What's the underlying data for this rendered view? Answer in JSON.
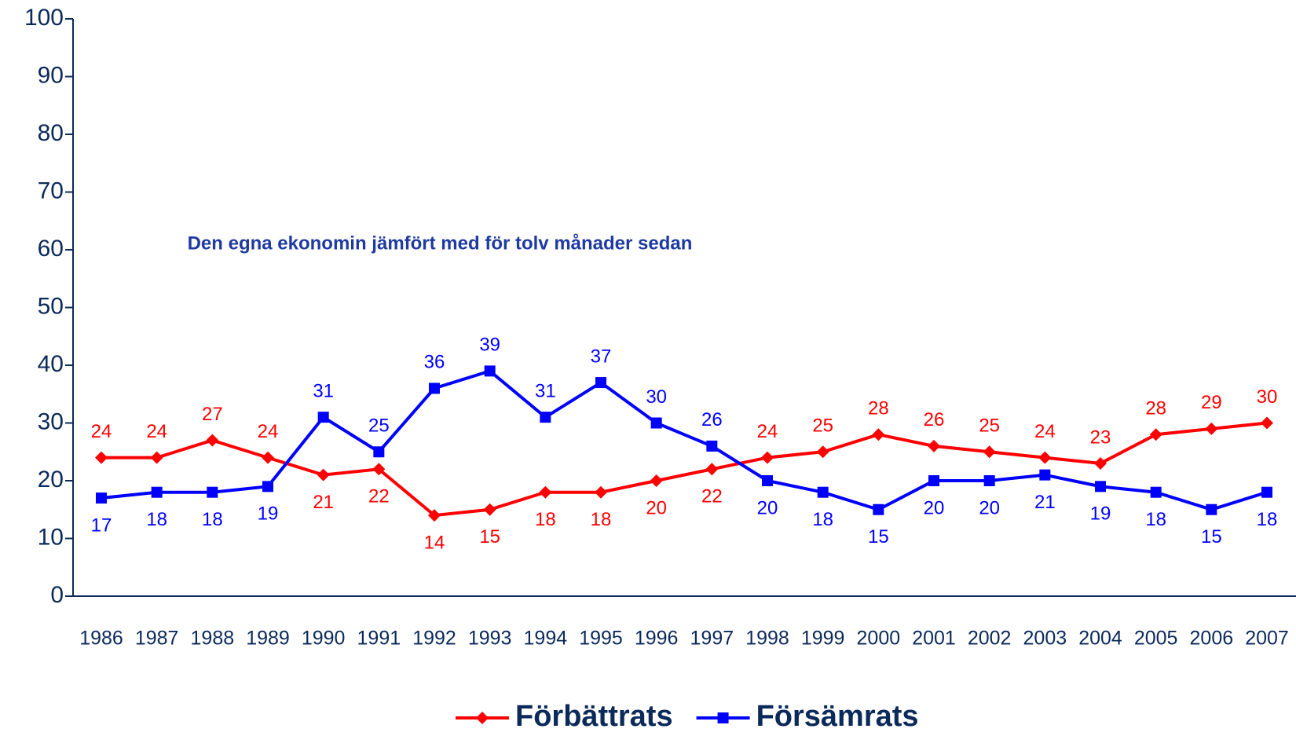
{
  "chart_data": {
    "type": "line",
    "title": "Den egna ekonomin jämfört med för tolv månader sedan",
    "categories": [
      "1986",
      "1987",
      "1988",
      "1989",
      "1990",
      "1991",
      "1992",
      "1993",
      "1994",
      "1995",
      "1996",
      "1997",
      "1998",
      "1999",
      "2000",
      "2001",
      "2002",
      "2003",
      "2004",
      "2005",
      "2006",
      "2007"
    ],
    "series": [
      {
        "name": "Förbättrats",
        "color": "#ff0000",
        "marker": "diamond",
        "values": [
          24,
          24,
          27,
          24,
          21,
          22,
          14,
          15,
          18,
          18,
          20,
          22,
          24,
          25,
          28,
          26,
          25,
          24,
          23,
          28,
          29,
          30
        ]
      },
      {
        "name": "Försämrats",
        "color": "#0000ff",
        "marker": "square",
        "values": [
          17,
          18,
          18,
          19,
          31,
          25,
          36,
          39,
          31,
          37,
          30,
          26,
          20,
          18,
          15,
          20,
          20,
          21,
          19,
          18,
          15,
          18
        ]
      }
    ],
    "ylim": [
      0,
      100
    ],
    "yticks": [
      0,
      10,
      20,
      30,
      40,
      50,
      60,
      70,
      80,
      90,
      100
    ],
    "legend": "bottom"
  }
}
